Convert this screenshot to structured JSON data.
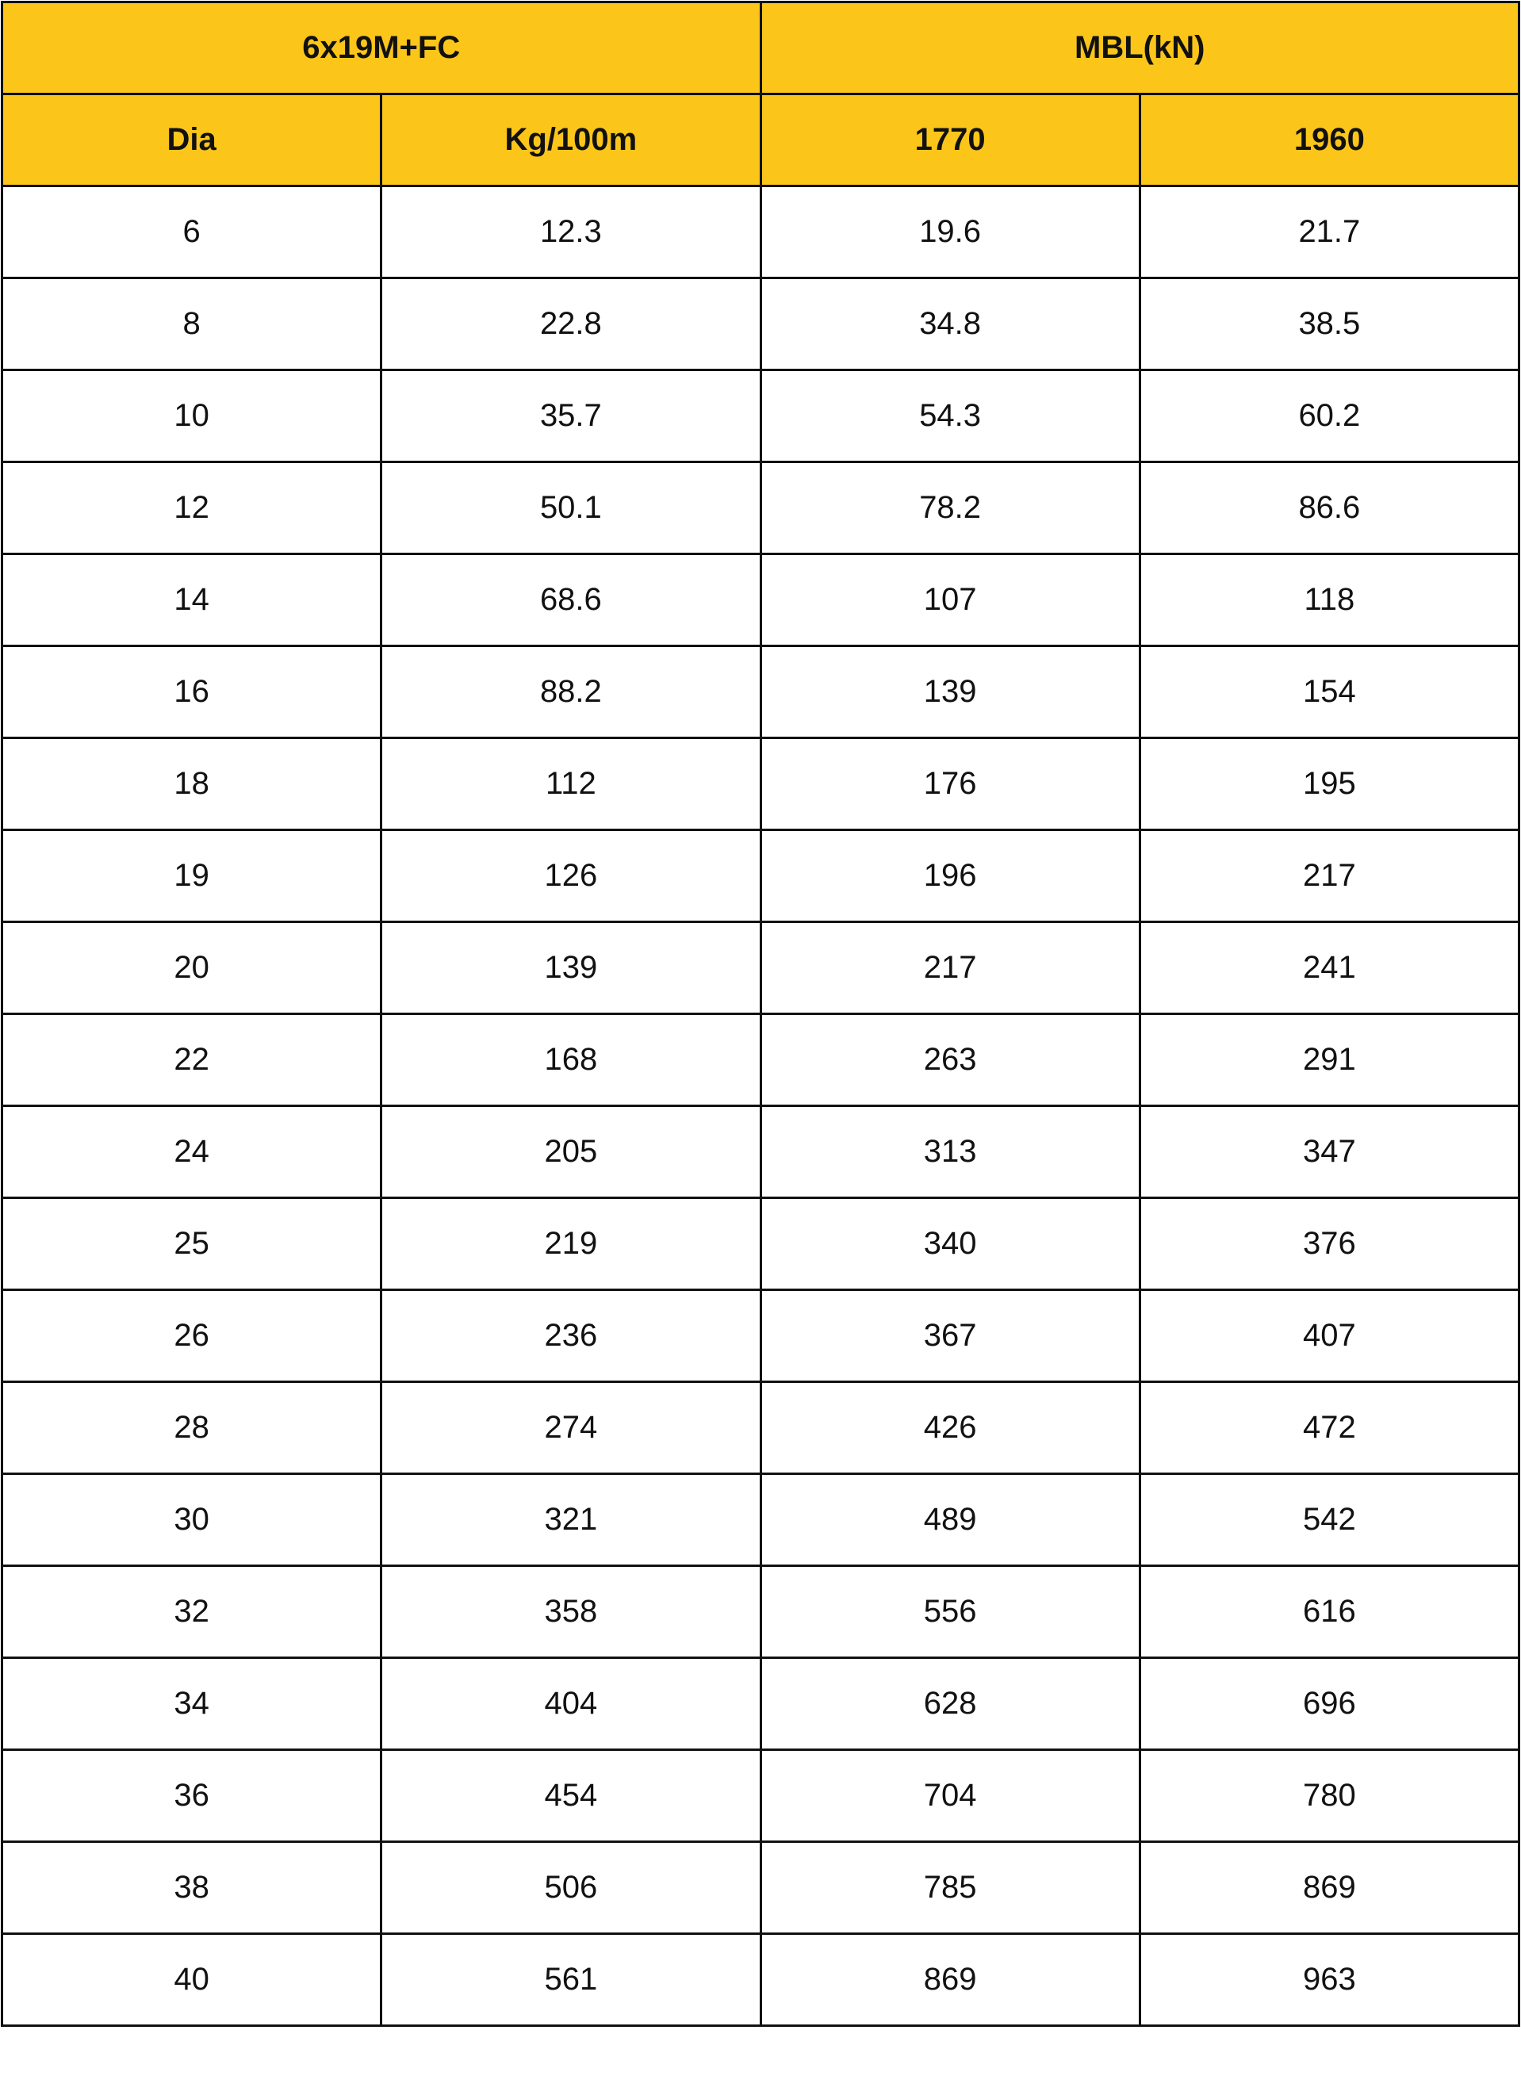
{
  "header": {
    "group1": "6x19M+FC",
    "group2": "MBL(kN)",
    "columns": [
      "Dia",
      "Kg/100m",
      "1770",
      "1960"
    ]
  },
  "colors": {
    "header_bg": "#FBC51A",
    "border": "#111111"
  },
  "rows": [
    [
      "6",
      "12.3",
      "19.6",
      "21.7"
    ],
    [
      "8",
      "22.8",
      "34.8",
      "38.5"
    ],
    [
      "10",
      "35.7",
      "54.3",
      "60.2"
    ],
    [
      "12",
      "50.1",
      "78.2",
      "86.6"
    ],
    [
      "14",
      "68.6",
      "107",
      "118"
    ],
    [
      "16",
      "88.2",
      "139",
      "154"
    ],
    [
      "18",
      "112",
      "176",
      "195"
    ],
    [
      "19",
      "126",
      "196",
      "217"
    ],
    [
      "20",
      "139",
      "217",
      "241"
    ],
    [
      "22",
      "168",
      "263",
      "291"
    ],
    [
      "24",
      "205",
      "313",
      "347"
    ],
    [
      "25",
      "219",
      "340",
      "376"
    ],
    [
      "26",
      "236",
      "367",
      "407"
    ],
    [
      "28",
      "274",
      "426",
      "472"
    ],
    [
      "30",
      "321",
      "489",
      "542"
    ],
    [
      "32",
      "358",
      "556",
      "616"
    ],
    [
      "34",
      "404",
      "628",
      "696"
    ],
    [
      "36",
      "454",
      "704",
      "780"
    ],
    [
      "38",
      "506",
      "785",
      "869"
    ],
    [
      "40",
      "561",
      "869",
      "963"
    ]
  ]
}
